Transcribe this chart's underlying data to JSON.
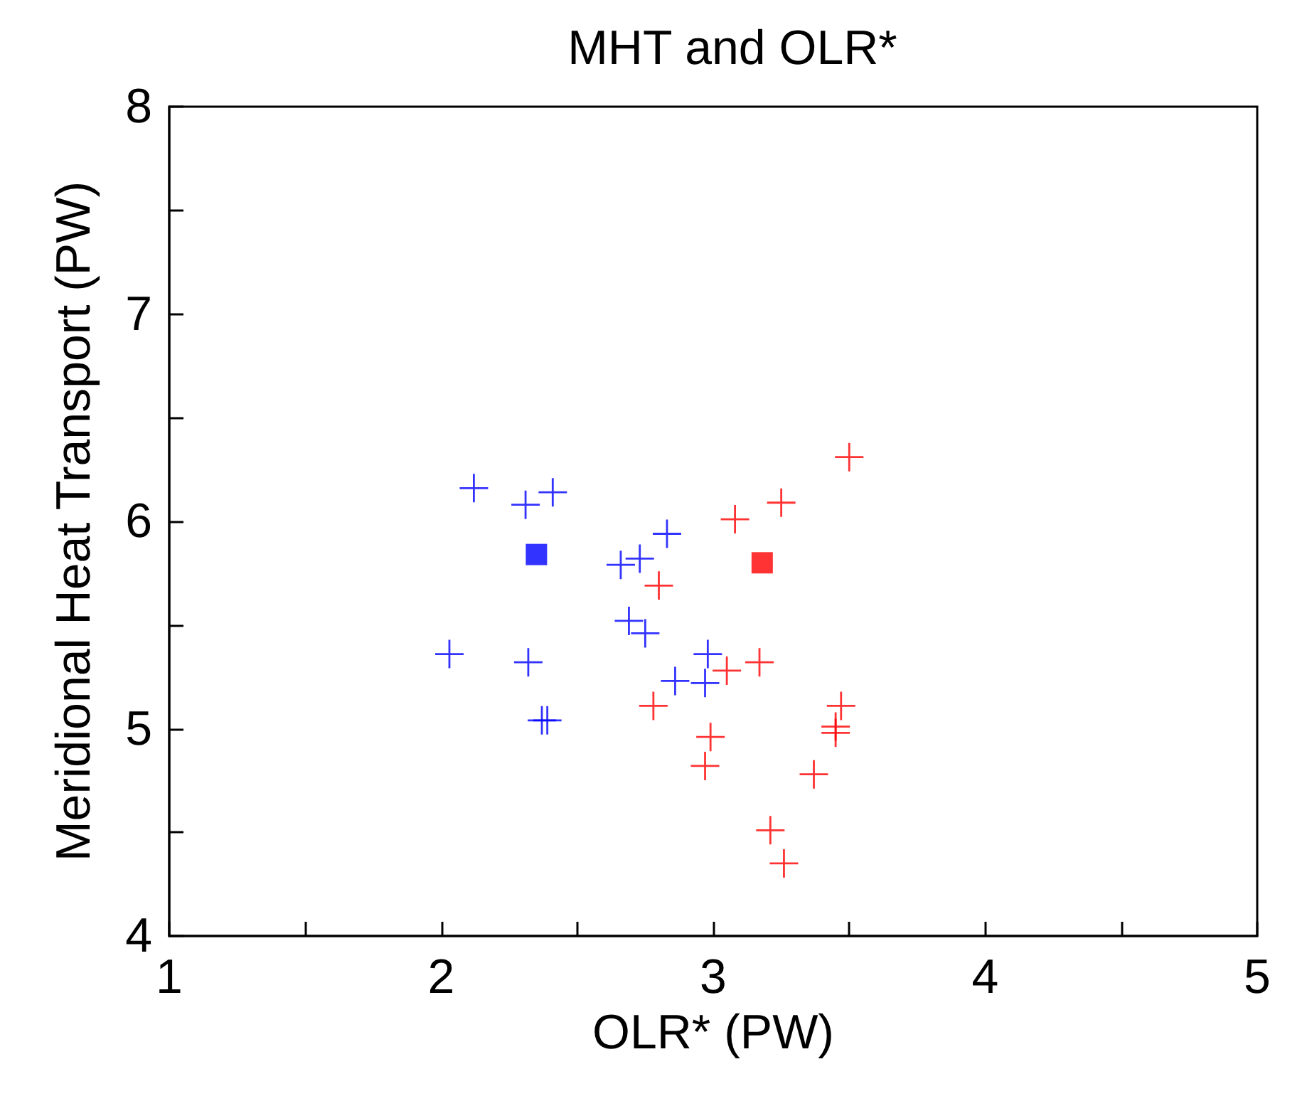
{
  "chart_data": {
    "type": "scatter",
    "title": "MHT and OLR*",
    "xlabel": "OLR* (PW)",
    "ylabel": "Meridional Heat Transport (PW)",
    "xlim": [
      1,
      5
    ],
    "xticks": [
      1,
      {
        "value": 1.5,
        "label": null
      },
      2,
      {
        "value": 2.5,
        "label": null
      },
      3,
      {
        "value": 3.5,
        "label": null
      },
      4,
      {
        "value": 4.5,
        "label": null
      },
      5
    ],
    "ylim": [
      4,
      8
    ],
    "yticks": [
      4,
      {
        "value": 4.5,
        "label": null
      },
      5,
      {
        "value": 5.5,
        "label": null
      },
      6,
      {
        "value": 6.5,
        "label": null
      },
      7,
      {
        "value": 7.5,
        "label": null
      },
      8
    ],
    "series": [
      {
        "color": "#0000ff",
        "marker": "cross",
        "x": [
          2.12,
          2.31,
          2.41,
          2.03,
          2.32,
          2.37,
          2.39,
          2.66,
          2.73,
          2.83,
          2.69,
          2.75,
          2.86,
          2.97,
          2.98
        ],
        "values": [
          6.16,
          6.08,
          6.14,
          5.36,
          5.32,
          5.04,
          5.04,
          5.79,
          5.82,
          5.94,
          5.52,
          5.46,
          5.23,
          5.22,
          5.36
        ]
      },
      {
        "color": "#0000ff",
        "marker": "square",
        "x": [
          2.35
        ],
        "values": [
          5.84
        ]
      },
      {
        "color": "#ff0000",
        "marker": "cross",
        "x": [
          3.5,
          3.25,
          3.08,
          2.8,
          3.17,
          3.05,
          2.78,
          3.47,
          3.45,
          3.45,
          2.99,
          2.97,
          3.37,
          3.21,
          3.26
        ],
        "values": [
          6.31,
          6.09,
          6.01,
          5.69,
          5.32,
          5.28,
          5.11,
          5.11,
          5.01,
          4.98,
          4.96,
          4.82,
          4.78,
          4.51,
          4.35
        ]
      },
      {
        "color": "#ff0000",
        "marker": "square",
        "x": [
          3.18
        ],
        "values": [
          5.8
        ]
      }
    ]
  }
}
